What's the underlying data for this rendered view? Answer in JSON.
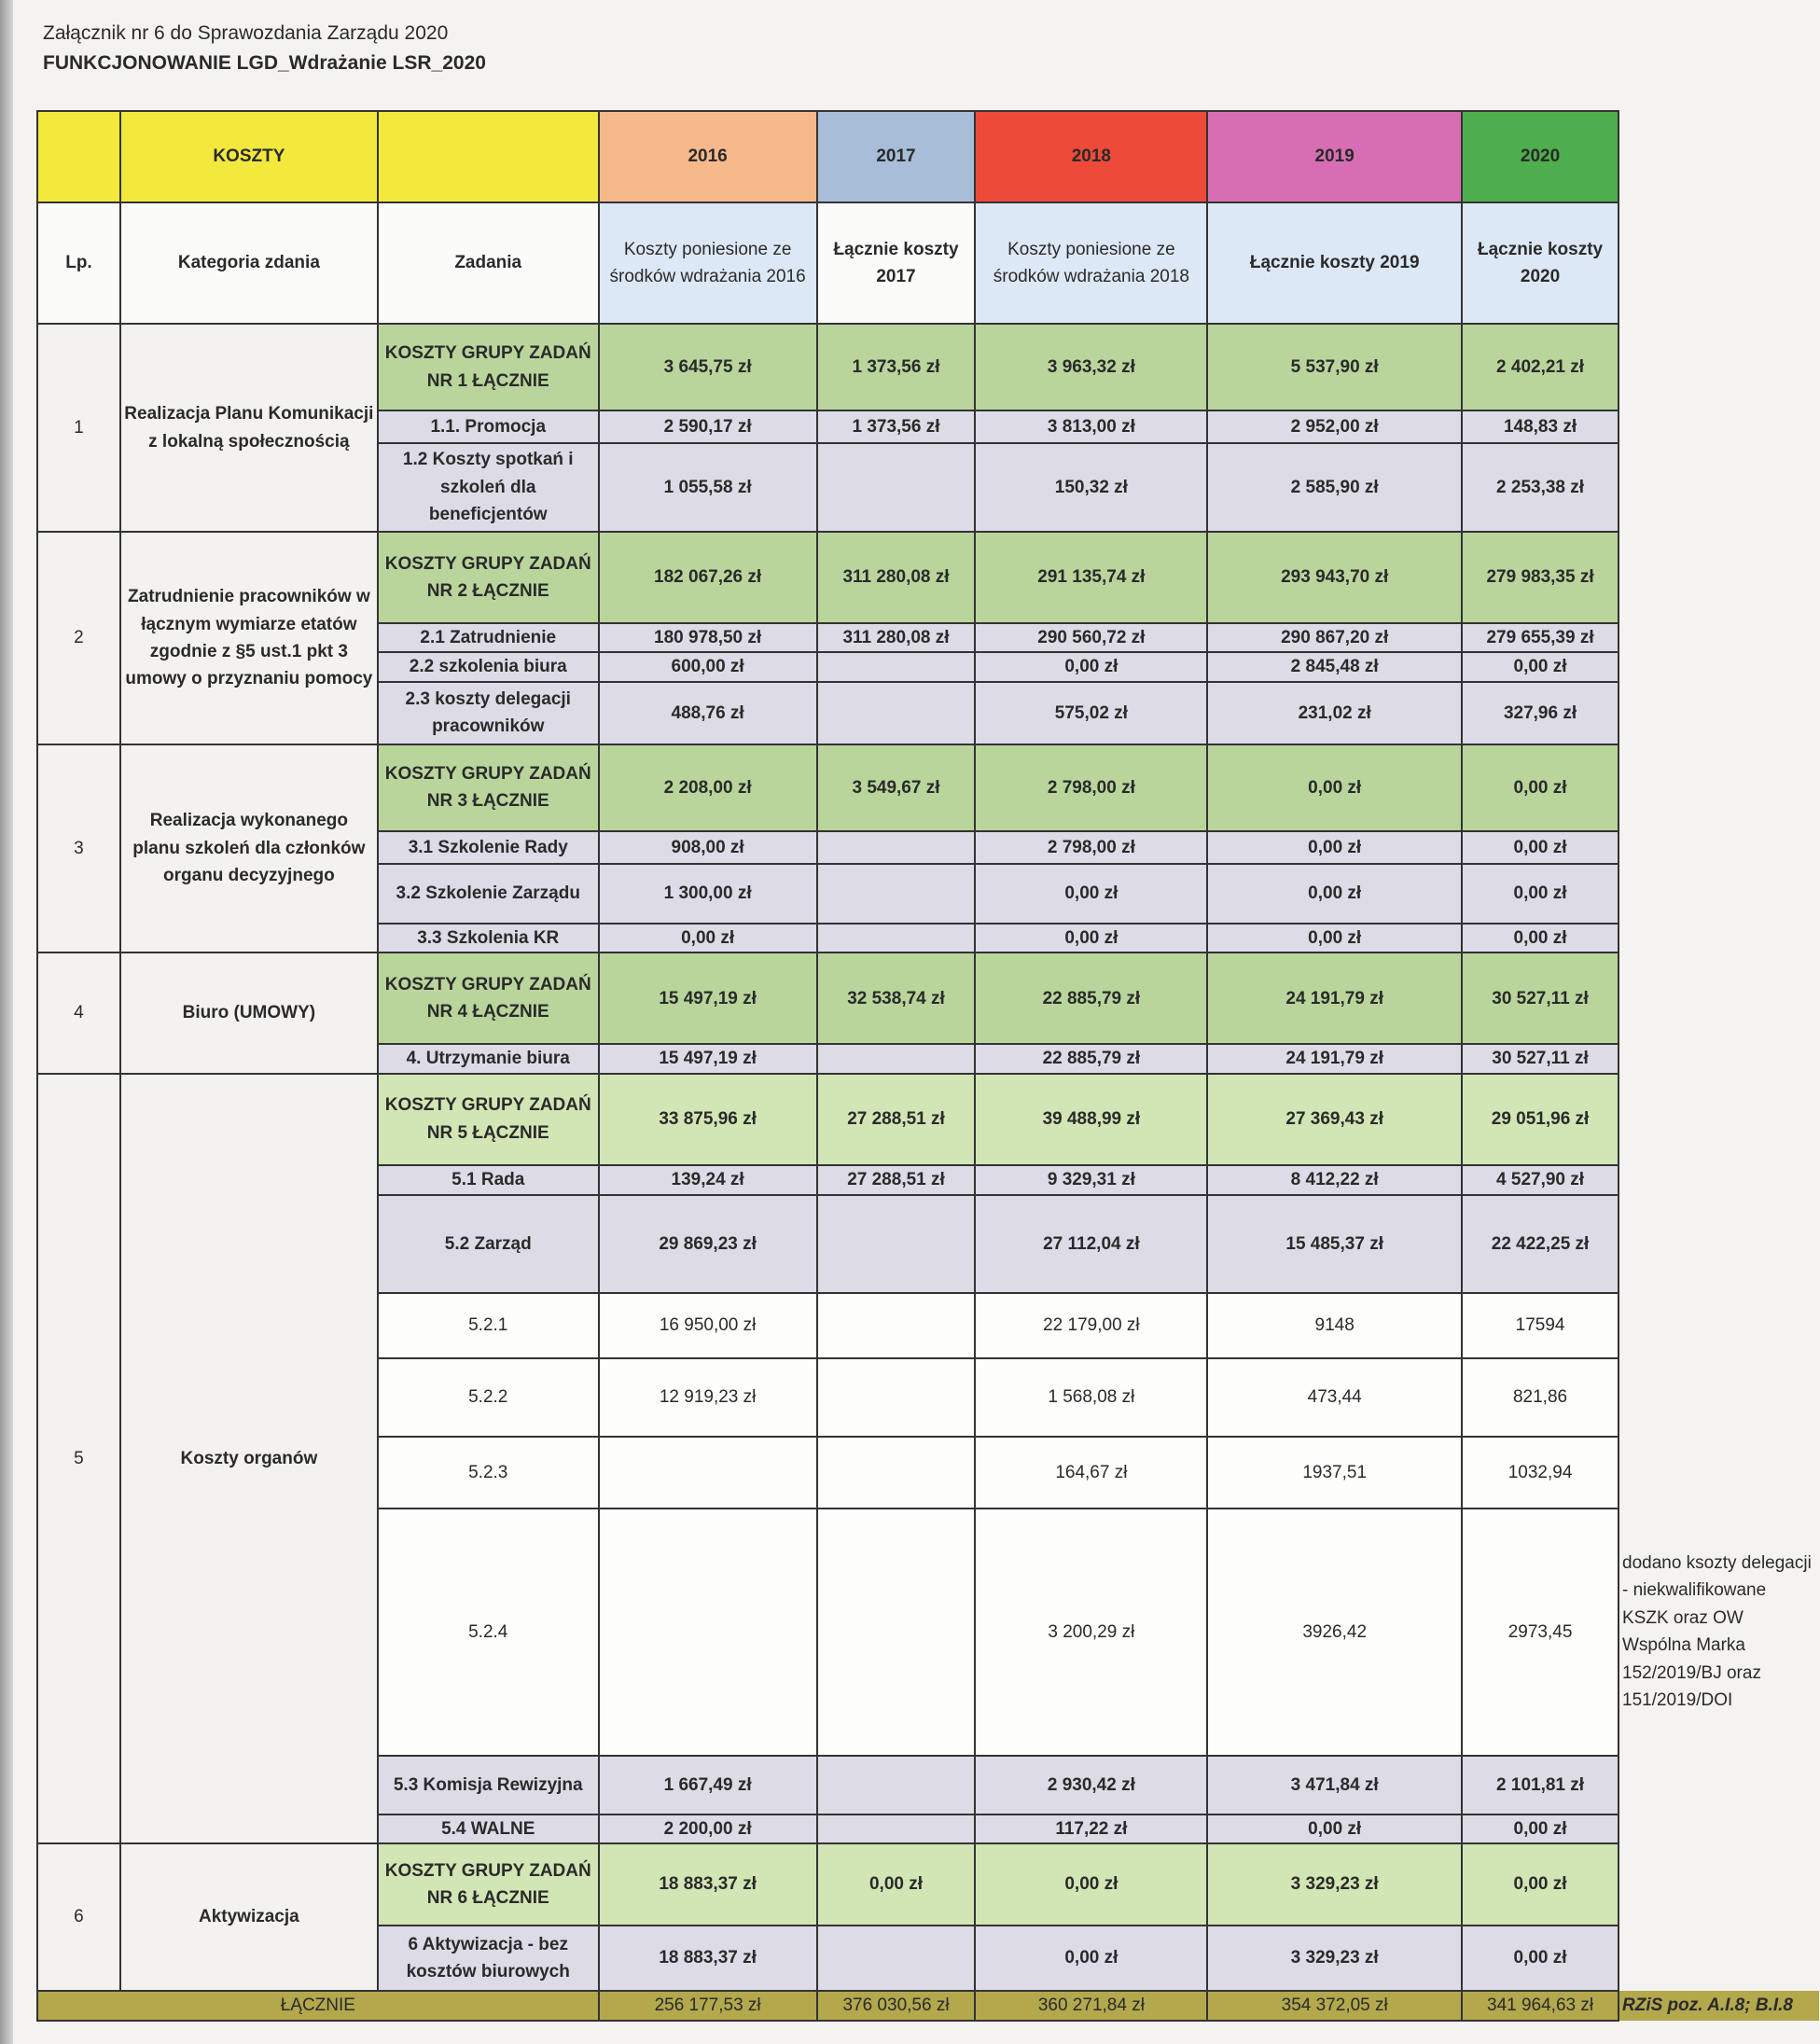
{
  "header": {
    "line1": "Załącznik nr 6 do Sprawozdania Zarządu 2020",
    "line2": "FUNKCJONOWANIE LGD_Wdrażanie LSR_2020"
  },
  "table": {
    "top": {
      "koszty": "KOSZTY",
      "years": [
        "2016",
        "2017",
        "2018",
        "2019",
        "2020"
      ]
    },
    "columns": {
      "lp": "Lp.",
      "category": "Kategoria zdania",
      "task": "Zadania",
      "years": [
        "Koszty poniesione ze środków wdrażania 2016",
        "Łącznie koszty 2017",
        "Koszty poniesione ze środków wdrażania 2018",
        "Łącznie koszty 2019",
        "Łącznie koszty 2020"
      ]
    },
    "colors": {
      "koszty": "#f3e83c",
      "2016": "#f6b98b",
      "2017": "#a8bdd8",
      "2018": "#ee4a3a",
      "2019": "#d76eb3",
      "2020": "#4eae4e",
      "group": "#b9d59c",
      "sub": "#dcdbe6",
      "total": "#b3a84c"
    },
    "groups": [
      {
        "lp": "1",
        "category": "Realizacja Planu Komunikacji z lokalną społecznością",
        "rows": [
          {
            "type": "group",
            "task": "KOSZTY GRUPY ZADAŃ NR 1 ŁĄCZNIE",
            "values": [
              "3 645,75 zł",
              "1 373,56 zł",
              "3 963,32 zł",
              "5 537,90 zł",
              "2 402,21 zł"
            ]
          },
          {
            "type": "sub",
            "task": "1.1. Promocja",
            "values": [
              "2 590,17 zł",
              "1 373,56 zł",
              "3 813,00 zł",
              "2 952,00 zł",
              "148,83 zł"
            ]
          },
          {
            "type": "sub",
            "task": "1.2 Koszty spotkań i szkoleń dla beneficjentów",
            "values": [
              "1 055,58 zł",
              "",
              "150,32 zł",
              "2 585,90 zł",
              "2 253,38 zł"
            ]
          }
        ]
      },
      {
        "lp": "2",
        "category": "Zatrudnienie pracowników w łącznym wymiarze etatów zgodnie z §5 ust.1 pkt 3 umowy o przyznaniu pomocy",
        "rows": [
          {
            "type": "group",
            "task": "KOSZTY GRUPY ZADAŃ NR 2 ŁĄCZNIE",
            "values": [
              "182 067,26 zł",
              "311 280,08 zł",
              "291 135,74 zł",
              "293 943,70 zł",
              "279 983,35 zł"
            ]
          },
          {
            "type": "sub",
            "task": "2.1 Zatrudnienie",
            "values": [
              "180 978,50 zł",
              "311 280,08 zł",
              "290 560,72 zł",
              "290 867,20 zł",
              "279 655,39 zł"
            ]
          },
          {
            "type": "sub",
            "task": "2.2 szkolenia biura",
            "values": [
              "600,00 zł",
              "",
              "0,00 zł",
              "2 845,48 zł",
              "0,00 zł"
            ]
          },
          {
            "type": "sub",
            "task": "2.3 koszty delegacji pracowników",
            "values": [
              "488,76 zł",
              "",
              "575,02 zł",
              "231,02 zł",
              "327,96 zł"
            ]
          }
        ]
      },
      {
        "lp": "3",
        "category": "Realizacja wykonanego planu szkoleń dla członków organu decyzyjnego",
        "rows": [
          {
            "type": "group",
            "task": "KOSZTY GRUPY ZADAŃ NR 3 ŁĄCZNIE",
            "values": [
              "2 208,00 zł",
              "3 549,67 zł",
              "2 798,00 zł",
              "0,00 zł",
              "0,00 zł"
            ]
          },
          {
            "type": "sub",
            "task": "3.1 Szkolenie Rady",
            "values": [
              "908,00 zł",
              "",
              "2 798,00 zł",
              "0,00 zł",
              "0,00 zł"
            ]
          },
          {
            "type": "sub",
            "task": "3.2 Szkolenie Zarządu",
            "values": [
              "1 300,00 zł",
              "",
              "0,00 zł",
              "0,00 zł",
              "0,00 zł"
            ]
          },
          {
            "type": "sub",
            "task": "3.3 Szkolenia KR",
            "values": [
              "0,00 zł",
              "",
              "0,00 zł",
              "0,00 zł",
              "0,00 zł"
            ]
          }
        ]
      },
      {
        "lp": "4",
        "category": "Biuro (UMOWY)",
        "rows": [
          {
            "type": "group",
            "task": "KOSZTY GRUPY ZADAŃ NR 4 ŁĄCZNIE",
            "values": [
              "15 497,19 zł",
              "32 538,74 zł",
              "22 885,79 zł",
              "24 191,79 zł",
              "30 527,11 zł"
            ]
          },
          {
            "type": "sub",
            "task": "4. Utrzymanie biura",
            "values": [
              "15 497,19 zł",
              "",
              "22 885,79 zł",
              "24 191,79 zł",
              "30 527,11 zł"
            ]
          }
        ]
      },
      {
        "lp": "5",
        "category": "Koszty organów",
        "rows": [
          {
            "type": "group5",
            "task": "KOSZTY GRUPY ZADAŃ NR 5 ŁĄCZNIE",
            "values": [
              "33 875,96 zł",
              "27 288,51 zł",
              "39 488,99 zł",
              "27 369,43 zł",
              "29 051,96 zł"
            ]
          },
          {
            "type": "sub",
            "task": "5.1 Rada",
            "values": [
              "139,24 zł",
              "27 288,51 zł",
              "9 329,31 zł",
              "8 412,22 zł",
              "4 527,90 zł"
            ]
          },
          {
            "type": "sub",
            "task": "5.2 Zarząd",
            "values": [
              "29 869,23 zł",
              "",
              "27 112,04 zł",
              "15 485,37 zł",
              "22 422,25 zł"
            ]
          },
          {
            "type": "plain",
            "task": "5.2.1",
            "values": [
              "16 950,00 zł",
              "",
              "22 179,00 zł",
              "9148",
              "17594"
            ]
          },
          {
            "type": "plain",
            "task": "5.2.2",
            "values": [
              "12 919,23 zł",
              "",
              "1 568,08 zł",
              "473,44",
              "821,86"
            ]
          },
          {
            "type": "plain",
            "task": "5.2.3",
            "values": [
              "",
              "",
              "164,67 zł",
              "1937,51",
              "1032,94"
            ]
          },
          {
            "type": "plain",
            "task": "5.2.4",
            "values": [
              "",
              "",
              "3 200,29 zł",
              "3926,42",
              "2973,45"
            ],
            "note": "dodano ksozty delegacji - niekwalifikowane KSZK oraz OW Wspólna Marka 152/2019/BJ oraz 151/2019/DOI"
          },
          {
            "type": "sub",
            "task": "5.3 Komisja Rewizyjna",
            "values": [
              "1 667,49 zł",
              "",
              "2 930,42 zł",
              "3 471,84 zł",
              "2 101,81 zł"
            ]
          },
          {
            "type": "sub",
            "task": "5.4 WALNE",
            "values": [
              "2 200,00 zł",
              "",
              "117,22 zł",
              "0,00 zł",
              "0,00 zł"
            ]
          }
        ]
      },
      {
        "lp": "6",
        "category": "Aktywizacja",
        "rows": [
          {
            "type": "group5",
            "task": "KOSZTY GRUPY ZADAŃ NR 6 ŁĄCZNIE",
            "values": [
              "18 883,37 zł",
              "0,00 zł",
              "0,00 zł",
              "3 329,23 zł",
              "0,00 zł"
            ]
          },
          {
            "type": "sub",
            "task": "6 Aktywizacja - bez kosztów biurowych",
            "values": [
              "18 883,37 zł",
              "",
              "0,00 zł",
              "3 329,23 zł",
              "0,00 zł"
            ]
          }
        ]
      }
    ],
    "total": {
      "label": "ŁĄCZNIE",
      "values": [
        "256 177,53 zł",
        "376 030,56 zł",
        "360 271,84 zł",
        "354 372,05 zł",
        "341 964,63 zł"
      ],
      "note": "RZiS poz. A.I.8; B.I.8"
    }
  }
}
